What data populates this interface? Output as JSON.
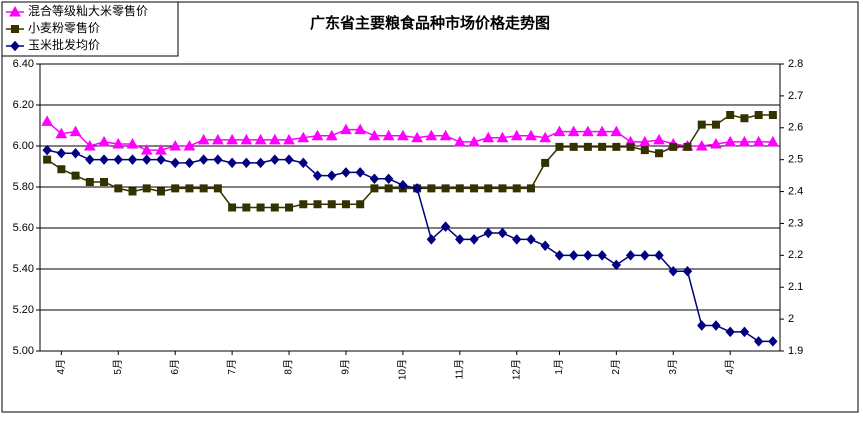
{
  "chart_data": {
    "type": "line",
    "title": "广东省主要粮食品种市场价格走势图",
    "categories": [
      null,
      "4月",
      null,
      null,
      null,
      "5月",
      null,
      null,
      null,
      "6月",
      null,
      null,
      null,
      "7月",
      null,
      null,
      null,
      "8月",
      null,
      null,
      null,
      "9月",
      null,
      null,
      null,
      "10月",
      null,
      null,
      null,
      "11月",
      null,
      null,
      null,
      "12月",
      null,
      null,
      "1月",
      null,
      null,
      null,
      "2月",
      null,
      null,
      null,
      "3月",
      null,
      null,
      null,
      "4月",
      null,
      null,
      null
    ],
    "series": [
      {
        "name": "混合等级籼大米零售价",
        "color": "#ff00ff",
        "marker": "triangle",
        "axis": "y",
        "values": [
          6.12,
          6.06,
          6.07,
          6.0,
          6.02,
          6.01,
          6.01,
          5.98,
          5.98,
          6.0,
          6.0,
          6.03,
          6.03,
          6.03,
          6.03,
          6.03,
          6.03,
          6.03,
          6.04,
          6.05,
          6.05,
          6.08,
          6.08,
          6.05,
          6.05,
          6.05,
          6.04,
          6.05,
          6.05,
          6.02,
          6.02,
          6.04,
          6.04,
          6.05,
          6.05,
          6.04,
          6.07,
          6.07,
          6.07,
          6.07,
          6.07,
          6.02,
          6.02,
          6.03,
          6.01,
          6.0,
          6.0,
          6.01,
          6.02,
          6.02,
          6.02,
          6.02
        ]
      },
      {
        "name": "小麦粉零售价",
        "color": "#333300",
        "marker": "square",
        "axis": "y2",
        "values": [
          2.5,
          2.47,
          2.45,
          2.43,
          2.43,
          2.41,
          2.4,
          2.41,
          2.4,
          2.41,
          2.41,
          2.41,
          2.41,
          2.35,
          2.35,
          2.35,
          2.35,
          2.35,
          2.36,
          2.36,
          2.36,
          2.36,
          2.36,
          2.41,
          2.41,
          2.41,
          2.41,
          2.41,
          2.41,
          2.41,
          2.41,
          2.41,
          2.41,
          2.41,
          2.41,
          2.49,
          2.54,
          2.54,
          2.54,
          2.54,
          2.54,
          2.54,
          2.53,
          2.52,
          2.54,
          2.54,
          2.61,
          2.61,
          2.64,
          2.63,
          2.64,
          2.64
        ]
      },
      {
        "name": "玉米批发均价",
        "color": "#000080",
        "marker": "diamond",
        "axis": "y2",
        "values": [
          2.53,
          2.52,
          2.52,
          2.5,
          2.5,
          2.5,
          2.5,
          2.5,
          2.5,
          2.49,
          2.49,
          2.5,
          2.5,
          2.49,
          2.49,
          2.49,
          2.5,
          2.5,
          2.49,
          2.45,
          2.45,
          2.46,
          2.46,
          2.44,
          2.44,
          2.42,
          2.41,
          2.25,
          2.29,
          2.25,
          2.25,
          2.27,
          2.27,
          2.25,
          2.25,
          2.23,
          2.2,
          2.2,
          2.2,
          2.2,
          2.17,
          2.2,
          2.2,
          2.2,
          2.15,
          2.15,
          1.98,
          1.98,
          1.96,
          1.96,
          1.93,
          1.93
        ]
      }
    ],
    "ylim": [
      5.0,
      6.4
    ],
    "yticks": [
      {
        "value": 5.0,
        "label": "5.00"
      },
      {
        "value": 5.2,
        "label": "5.20"
      },
      {
        "value": 5.4,
        "label": "5.40"
      },
      {
        "value": 5.6,
        "label": "5.60"
      },
      {
        "value": 5.8,
        "label": "5.80"
      },
      {
        "value": 6.0,
        "label": "6.00"
      },
      {
        "value": 6.2,
        "label": "6.20"
      },
      {
        "value": 6.4,
        "label": "6.40"
      }
    ],
    "y2lim": [
      1.9,
      2.8
    ],
    "y2ticks": [
      1.9,
      2,
      2.1,
      2.2,
      2.3,
      2.4,
      2.5,
      2.6,
      2.7,
      2.8
    ],
    "grid": true,
    "legend": "top-left"
  }
}
